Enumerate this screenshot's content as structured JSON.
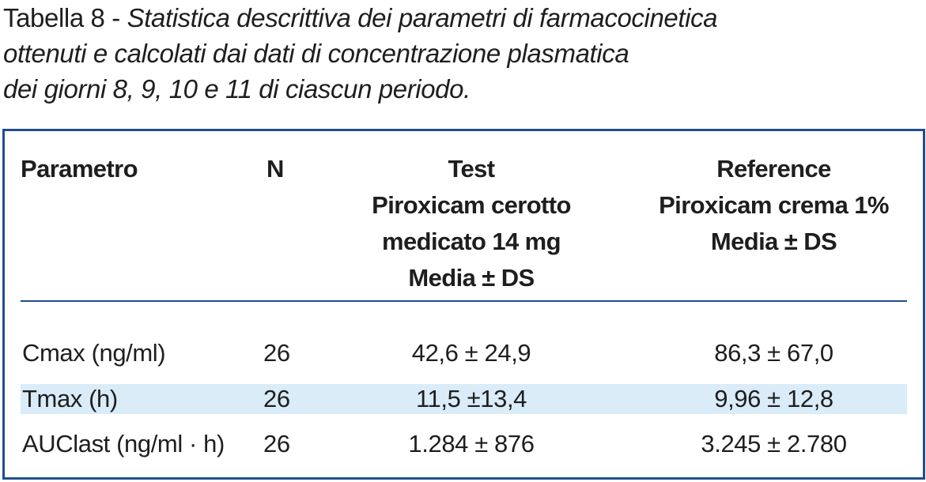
{
  "caption": {
    "label": "Tabella 8",
    "separator": " - ",
    "lines": [
      "Statistica descrittiva dei parametri di farmacocinetica",
      "ottenuti e calcolati dai dati di concentrazione plasmatica",
      "dei giorni 8, 9, 10 e 11 di ciascun periodo."
    ]
  },
  "table": {
    "headers": {
      "parametro": "Parametro",
      "n": "N",
      "test": [
        "Test",
        "Piroxicam cerotto",
        "medicato 14 mg",
        "Media ± DS"
      ],
      "reference": [
        "Reference",
        "Piroxicam crema 1%",
        "Media ± DS"
      ]
    },
    "rows": [
      {
        "parametro": "Cmax (ng/ml)",
        "n": "26",
        "test": "42,6 ± 24,9",
        "reference": "86,3 ± 67,0",
        "shaded": false
      },
      {
        "parametro": "Tmax (h)",
        "n": "26",
        "test": "11,5 ±13,4",
        "reference": "9,96 ± 12,8",
        "shaded": true
      },
      {
        "parametro": "AUClast (ng/ml · h)",
        "n": "26",
        "test": "1.284 ± 876",
        "reference": "3.245 ± 2.780",
        "shaded": false
      }
    ],
    "colors": {
      "border": "#1f4e8e",
      "row_highlight": "#d9ecf7",
      "text": "#1e1e1e"
    }
  }
}
